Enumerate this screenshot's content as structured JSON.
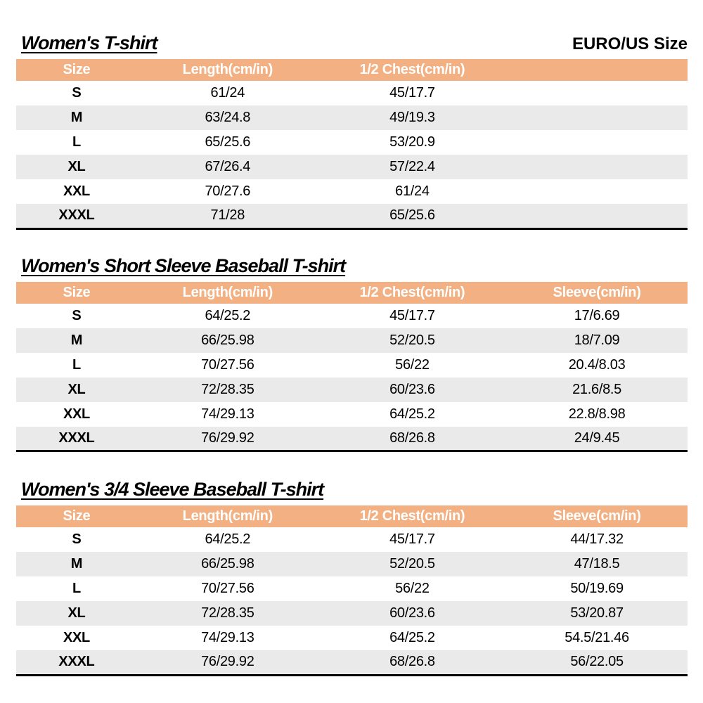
{
  "page": {
    "size_standard_label": "EURO/US Size"
  },
  "colors": {
    "header_bg": "#F2B083",
    "header_text": "#FFFFFF",
    "alt_row_bg": "#EAEAEA",
    "body_text": "#000000",
    "table_bottom_border": "#000000"
  },
  "tables": [
    {
      "title": "Women's T-shirt",
      "columns": [
        "Size",
        "Length(cm/in)",
        "1/2 Chest(cm/in)",
        ""
      ],
      "rows": [
        [
          "S",
          "61/24",
          "45/17.7",
          ""
        ],
        [
          "M",
          "63/24.8",
          "49/19.3",
          ""
        ],
        [
          "L",
          "65/25.6",
          "53/20.9",
          ""
        ],
        [
          "XL",
          "67/26.4",
          "57/22.4",
          ""
        ],
        [
          "XXL",
          "70/27.6",
          "61/24",
          ""
        ],
        [
          "XXXL",
          "71/28",
          "65/25.6",
          ""
        ]
      ]
    },
    {
      "title": "Women's Short Sleeve Baseball T-shirt",
      "columns": [
        "Size",
        "Length(cm/in)",
        "1/2 Chest(cm/in)",
        "Sleeve(cm/in)"
      ],
      "rows": [
        [
          "S",
          "64/25.2",
          "45/17.7",
          "17/6.69"
        ],
        [
          "M",
          "66/25.98",
          "52/20.5",
          "18/7.09"
        ],
        [
          "L",
          "70/27.56",
          "56/22",
          "20.4/8.03"
        ],
        [
          "XL",
          "72/28.35",
          "60/23.6",
          "21.6/8.5"
        ],
        [
          "XXL",
          "74/29.13",
          "64/25.2",
          "22.8/8.98"
        ],
        [
          "XXXL",
          "76/29.92",
          "68/26.8",
          "24/9.45"
        ]
      ]
    },
    {
      "title": "Women's 3/4 Sleeve Baseball T-shirt",
      "columns": [
        "Size",
        "Length(cm/in)",
        "1/2 Chest(cm/in)",
        "Sleeve(cm/in)"
      ],
      "rows": [
        [
          "S",
          "64/25.2",
          "45/17.7",
          "44/17.32"
        ],
        [
          "M",
          "66/25.98",
          "52/20.5",
          "47/18.5"
        ],
        [
          "L",
          "70/27.56",
          "56/22",
          "50/19.69"
        ],
        [
          "XL",
          "72/28.35",
          "60/23.6",
          "53/20.87"
        ],
        [
          "XXL",
          "74/29.13",
          "64/25.2",
          "54.5/21.46"
        ],
        [
          "XXXL",
          "76/29.92",
          "68/26.8",
          "56/22.05"
        ]
      ]
    }
  ]
}
